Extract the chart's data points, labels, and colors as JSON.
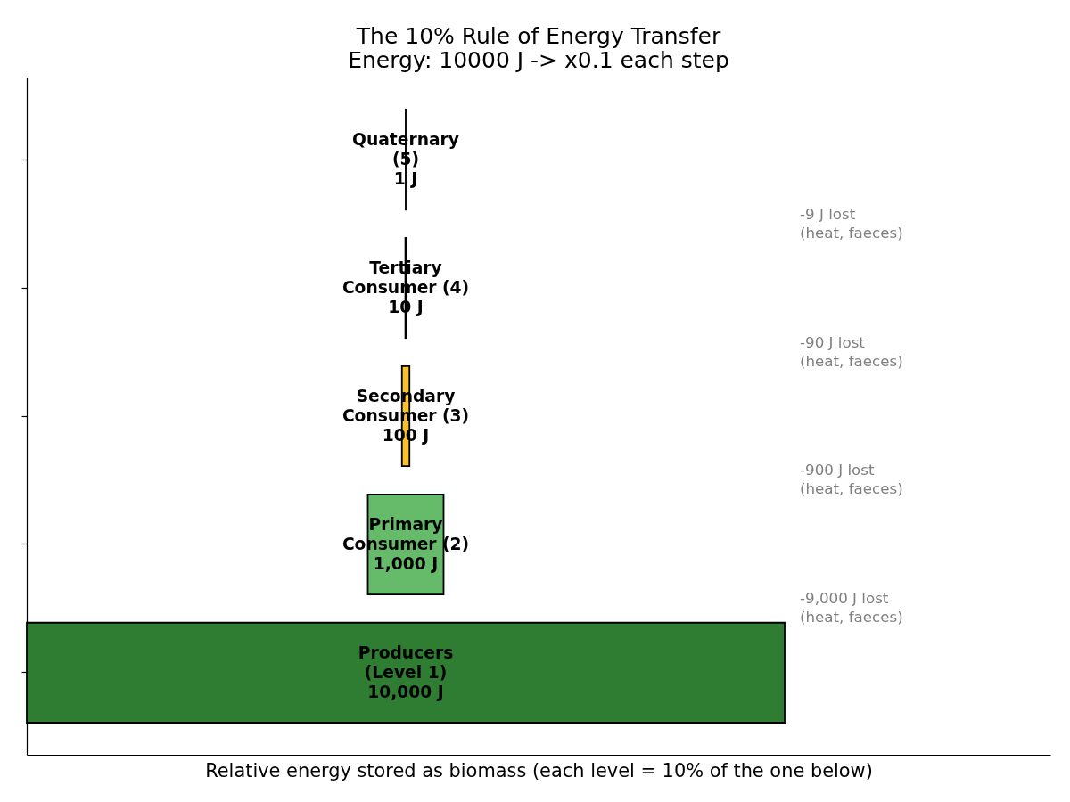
{
  "chart_data": {
    "type": "other",
    "title": "The 10% Rule of Energy Transfer",
    "subtitle": "Energy: 10000 J -> x0.1 each step",
    "xlabel": "Relative energy stored as biomass (each level = 10% of the one below)",
    "categories": [
      "Quaternary\n(5)",
      "Tertiary\nConsumer (4)",
      "Secondary\nConsumer (3)",
      "Primary\nConsumer (2)",
      "Producers\n(Level 1)"
    ],
    "values": [
      1,
      10,
      100,
      1000,
      10000
    ],
    "value_labels": [
      "1 J",
      "10 J",
      "100 J",
      "1,000 J",
      "10,000 J"
    ],
    "colors": [
      "#c62828",
      "#ef6c00",
      "#fbc02d",
      "#66bb6a",
      "#2e7d32"
    ],
    "annotations": [
      "-9 J lost\n(heat, faeces)",
      "-90 J lost\n(heat, faeces)",
      "-900 J lost\n(heat, faeces)",
      "-9,000 J lost\n(heat, faeces)"
    ]
  }
}
